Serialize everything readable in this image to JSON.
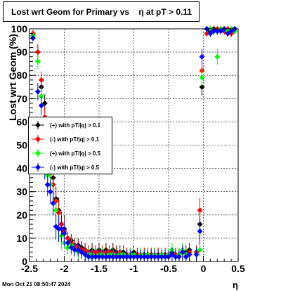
{
  "title": "Lost wrt Geom for Primary vs    η at pT > 0.11",
  "timestamp": "Mon Oct 21 08:50:47 2024",
  "chart_data": {
    "type": "scatter",
    "xlabel": "η",
    "ylabel": "Lost wrt Geom (%)",
    "xlim": [
      -2.5,
      0.5
    ],
    "ylim": [
      0,
      100
    ],
    "x_ticks": [
      "-2.5",
      "-2",
      "-1.5",
      "-1",
      "-0.5",
      "0",
      "0.5"
    ],
    "y_ticks": [
      "0",
      "10",
      "20",
      "30",
      "40",
      "50",
      "60",
      "70",
      "80",
      "90",
      "100"
    ],
    "grid": true,
    "legend_position": "left-middle",
    "series": [
      {
        "name": "(+) with pT/|q| > 0.1",
        "color": "#000000",
        "points": [
          [
            -2.45,
            97
          ],
          [
            -2.38,
            90
          ],
          [
            -2.33,
            75
          ],
          [
            -2.28,
            68
          ],
          [
            -2.24,
            46
          ],
          [
            -2.2,
            40
          ],
          [
            -2.16,
            36
          ],
          [
            -2.12,
            27
          ],
          [
            -2.08,
            22
          ],
          [
            -2.04,
            16
          ],
          [
            -2.0,
            14
          ],
          [
            -1.95,
            10
          ],
          [
            -1.9,
            9
          ],
          [
            -1.85,
            7
          ],
          [
            -1.8,
            7
          ],
          [
            -1.75,
            6
          ],
          [
            -1.7,
            5
          ],
          [
            -1.65,
            4
          ],
          [
            -1.6,
            5
          ],
          [
            -1.55,
            4
          ],
          [
            -1.5,
            5
          ],
          [
            -1.45,
            4
          ],
          [
            -1.4,
            5
          ],
          [
            -1.35,
            4
          ],
          [
            -1.3,
            5
          ],
          [
            -1.25,
            4
          ],
          [
            -1.2,
            4
          ],
          [
            -1.15,
            4
          ],
          [
            -1.1,
            3
          ],
          [
            -1.05,
            3
          ],
          [
            -1.0,
            4
          ],
          [
            -0.95,
            3
          ],
          [
            -0.9,
            3
          ],
          [
            -0.85,
            3
          ],
          [
            -0.8,
            3
          ],
          [
            -0.75,
            3
          ],
          [
            -0.7,
            3
          ],
          [
            -0.65,
            3
          ],
          [
            -0.6,
            3
          ],
          [
            -0.55,
            3
          ],
          [
            -0.5,
            3
          ],
          [
            -0.45,
            4
          ],
          [
            -0.4,
            3
          ],
          [
            -0.35,
            3
          ],
          [
            -0.3,
            4
          ],
          [
            -0.25,
            4
          ],
          [
            -0.2,
            5
          ],
          [
            -0.1,
            4
          ],
          [
            -0.05,
            16
          ],
          [
            -0.02,
            75
          ],
          [
            0.05,
            100
          ],
          [
            0.1,
            99
          ],
          [
            0.15,
            100
          ],
          [
            0.2,
            99
          ],
          [
            0.25,
            100
          ],
          [
            0.3,
            99
          ],
          [
            0.35,
            98
          ],
          [
            0.4,
            98
          ],
          [
            0.45,
            100
          ]
        ]
      },
      {
        "name": "(-) with pT/|q| > 0.1",
        "color": "#ff0000",
        "points": [
          [
            -2.45,
            98
          ],
          [
            -2.38,
            90
          ],
          [
            -2.33,
            78
          ],
          [
            -2.28,
            62
          ],
          [
            -2.24,
            45
          ],
          [
            -2.2,
            38
          ],
          [
            -2.16,
            33
          ],
          [
            -2.12,
            26
          ],
          [
            -2.08,
            21
          ],
          [
            -2.04,
            16
          ],
          [
            -2.0,
            13
          ],
          [
            -1.95,
            10
          ],
          [
            -1.9,
            8
          ],
          [
            -1.85,
            7
          ],
          [
            -1.8,
            6
          ],
          [
            -1.75,
            5
          ],
          [
            -1.7,
            5
          ],
          [
            -1.65,
            4
          ],
          [
            -1.6,
            4
          ],
          [
            -1.55,
            4
          ],
          [
            -1.5,
            4
          ],
          [
            -1.45,
            4
          ],
          [
            -1.4,
            4
          ],
          [
            -1.35,
            4
          ],
          [
            -1.3,
            4
          ],
          [
            -1.25,
            3
          ],
          [
            -1.2,
            4
          ],
          [
            -1.15,
            3
          ],
          [
            -1.1,
            3
          ],
          [
            -1.05,
            3
          ],
          [
            -1.0,
            3
          ],
          [
            -0.95,
            3
          ],
          [
            -0.9,
            3
          ],
          [
            -0.85,
            3
          ],
          [
            -0.8,
            3
          ],
          [
            -0.75,
            3
          ],
          [
            -0.7,
            3
          ],
          [
            -0.65,
            3
          ],
          [
            -0.6,
            3
          ],
          [
            -0.55,
            3
          ],
          [
            -0.5,
            3
          ],
          [
            -0.45,
            3
          ],
          [
            -0.4,
            3
          ],
          [
            -0.35,
            3
          ],
          [
            -0.3,
            4
          ],
          [
            -0.25,
            3
          ],
          [
            -0.2,
            4
          ],
          [
            -0.1,
            4
          ],
          [
            -0.05,
            22
          ],
          [
            -0.02,
            82
          ],
          [
            0.05,
            98
          ],
          [
            0.1,
            100
          ],
          [
            0.15,
            99
          ],
          [
            0.2,
            100
          ],
          [
            0.25,
            100
          ],
          [
            0.3,
            99
          ],
          [
            0.35,
            100
          ],
          [
            0.4,
            98
          ],
          [
            0.45,
            99
          ]
        ]
      },
      {
        "name": "(+) with pT/|q| > 0.5",
        "color": "#00ff00",
        "points": [
          [
            -2.45,
            97
          ],
          [
            -2.38,
            86
          ],
          [
            -2.33,
            71
          ],
          [
            -2.28,
            56
          ],
          [
            -2.24,
            37
          ],
          [
            -2.2,
            33
          ],
          [
            -2.16,
            25
          ],
          [
            -2.12,
            22
          ],
          [
            -2.08,
            14
          ],
          [
            -2.04,
            11
          ],
          [
            -2.0,
            8
          ],
          [
            -1.95,
            6
          ],
          [
            -1.9,
            7
          ],
          [
            -1.85,
            5
          ],
          [
            -1.8,
            4
          ],
          [
            -1.75,
            4
          ],
          [
            -1.7,
            3
          ],
          [
            -1.65,
            3
          ],
          [
            -1.6,
            3
          ],
          [
            -1.55,
            2
          ],
          [
            -1.5,
            3
          ],
          [
            -1.45,
            3
          ],
          [
            -1.4,
            2
          ],
          [
            -1.35,
            3
          ],
          [
            -1.3,
            3
          ],
          [
            -1.25,
            2
          ],
          [
            -1.2,
            3
          ],
          [
            -1.15,
            3
          ],
          [
            -1.1,
            2
          ],
          [
            -1.05,
            3
          ],
          [
            -1.0,
            3
          ],
          [
            -0.95,
            2
          ],
          [
            -0.9,
            3
          ],
          [
            -0.85,
            2
          ],
          [
            -0.8,
            3
          ],
          [
            -0.75,
            2
          ],
          [
            -0.7,
            3
          ],
          [
            -0.65,
            2
          ],
          [
            -0.6,
            3
          ],
          [
            -0.55,
            2
          ],
          [
            -0.5,
            3
          ],
          [
            -0.45,
            5
          ],
          [
            -0.4,
            2
          ],
          [
            -0.35,
            3
          ],
          [
            -0.3,
            5
          ],
          [
            -0.25,
            3
          ],
          [
            -0.2,
            3
          ],
          [
            -0.1,
            3
          ],
          [
            -0.05,
            5
          ],
          [
            -0.02,
            79
          ],
          [
            0.05,
            100
          ],
          [
            0.1,
            100
          ],
          [
            0.15,
            99
          ],
          [
            0.2,
            88
          ],
          [
            0.25,
            100
          ],
          [
            0.3,
            100
          ],
          [
            0.35,
            99
          ],
          [
            0.4,
            100
          ],
          [
            0.45,
            99
          ]
        ]
      },
      {
        "name": "(-) with pT/|q| > 0.5",
        "color": "#0000ff",
        "points": [
          [
            -2.45,
            96
          ],
          [
            -2.38,
            73
          ],
          [
            -2.33,
            67
          ],
          [
            -2.28,
            40
          ],
          [
            -2.24,
            33
          ],
          [
            -2.2,
            30
          ],
          [
            -2.16,
            25
          ],
          [
            -2.12,
            15
          ],
          [
            -2.08,
            14
          ],
          [
            -2.04,
            14
          ],
          [
            -2.0,
            12
          ],
          [
            -1.95,
            8
          ],
          [
            -1.9,
            6
          ],
          [
            -1.85,
            5
          ],
          [
            -1.8,
            5
          ],
          [
            -1.75,
            4
          ],
          [
            -1.7,
            3
          ],
          [
            -1.65,
            2
          ],
          [
            -1.6,
            2
          ],
          [
            -1.55,
            2
          ],
          [
            -1.5,
            2
          ],
          [
            -1.45,
            2
          ],
          [
            -1.4,
            2
          ],
          [
            -1.35,
            2
          ],
          [
            -1.3,
            2
          ],
          [
            -1.25,
            2
          ],
          [
            -1.2,
            2
          ],
          [
            -1.15,
            2
          ],
          [
            -1.1,
            2
          ],
          [
            -1.05,
            2
          ],
          [
            -1.0,
            2
          ],
          [
            -0.95,
            2
          ],
          [
            -0.9,
            2
          ],
          [
            -0.85,
            2
          ],
          [
            -0.8,
            2
          ],
          [
            -0.75,
            2
          ],
          [
            -0.7,
            2
          ],
          [
            -0.65,
            2
          ],
          [
            -0.6,
            2
          ],
          [
            -0.55,
            2
          ],
          [
            -0.5,
            2
          ],
          [
            -0.45,
            3
          ],
          [
            -0.4,
            2
          ],
          [
            -0.35,
            2
          ],
          [
            -0.3,
            4
          ],
          [
            -0.25,
            2
          ],
          [
            -0.2,
            3
          ],
          [
            -0.1,
            3
          ],
          [
            -0.05,
            13
          ],
          [
            -0.02,
            88
          ],
          [
            0.05,
            100
          ],
          [
            0.1,
            98
          ],
          [
            0.15,
            99
          ],
          [
            0.2,
            99
          ],
          [
            0.25,
            99
          ],
          [
            0.3,
            100
          ],
          [
            0.35,
            98
          ],
          [
            0.4,
            99
          ],
          [
            0.45,
            100
          ]
        ]
      }
    ]
  }
}
